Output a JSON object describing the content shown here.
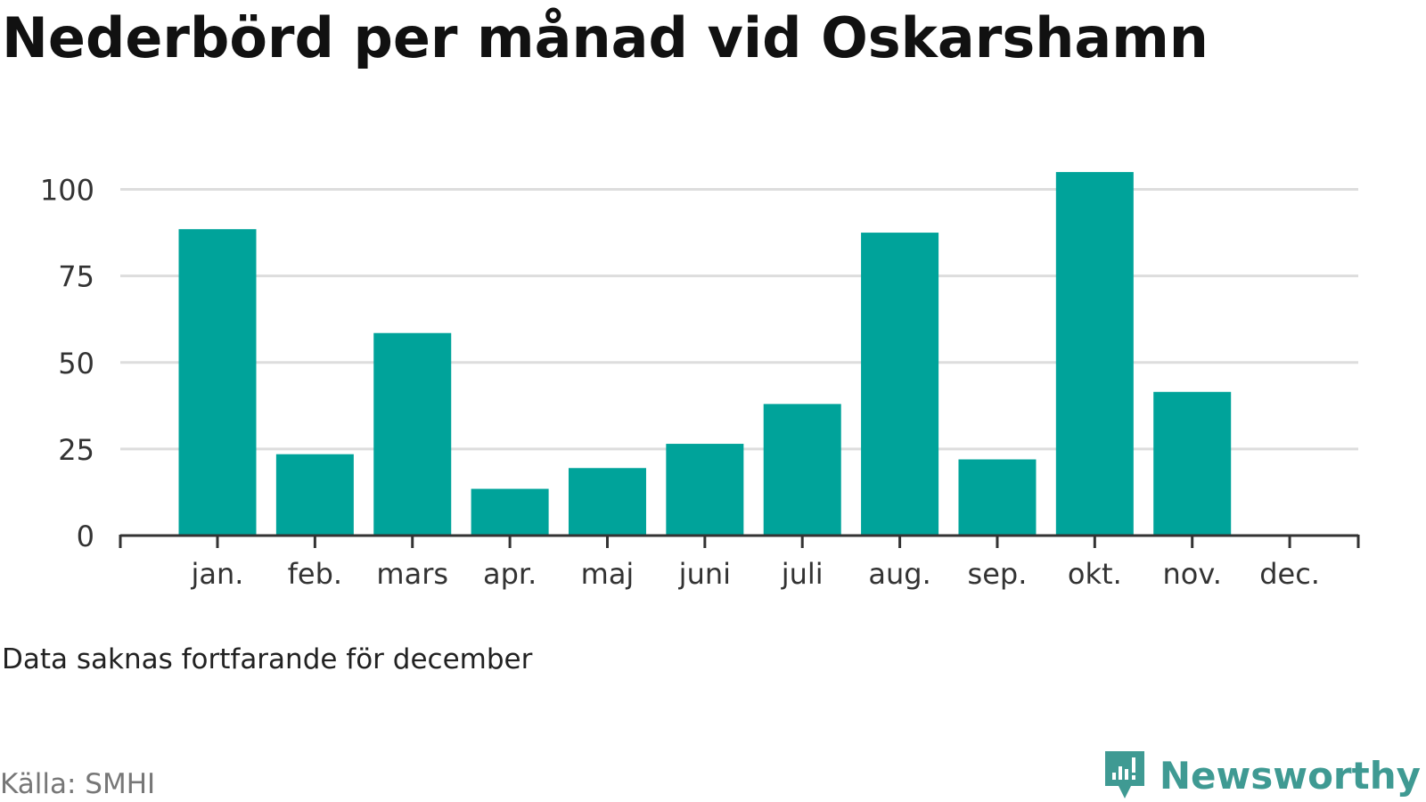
{
  "title": "Nederbörd per månad vid Oskarshamn",
  "note": "Data saknas fortfarande för december",
  "source": "Källa: SMHI",
  "brand": {
    "name": "Newsworthy",
    "icon": "newsworthy-logo-icon",
    "color": "#3f9a93"
  },
  "colors": {
    "bar": "#00a39a",
    "grid": "#dddddd",
    "axis": "#333333",
    "tick_text": "#333333"
  },
  "chart_data": {
    "type": "bar",
    "title": "Nederbörd per månad vid Oskarshamn",
    "categories": [
      "jan.",
      "feb.",
      "mars",
      "apr.",
      "maj",
      "juni",
      "juli",
      "aug.",
      "sep.",
      "okt.",
      "nov.",
      "dec."
    ],
    "values": [
      88.5,
      23.5,
      58.5,
      13.5,
      19.5,
      26.5,
      38,
      87.5,
      22,
      105,
      41.5,
      null
    ],
    "yticks": [
      0,
      25,
      50,
      75,
      100
    ],
    "ylim": [
      0,
      100
    ],
    "xlabel": "",
    "ylabel": "",
    "grid": true,
    "legend": "none"
  }
}
